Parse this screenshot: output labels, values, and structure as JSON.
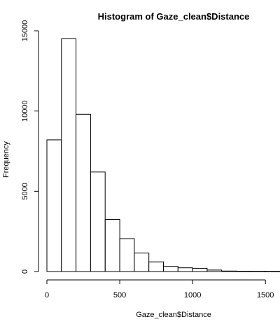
{
  "chart_data": {
    "type": "bar",
    "title": "Histogram of Gaze_clean$Distance",
    "xlabel": "Gaze_clean$Distance",
    "ylabel": "Frequency",
    "bins": [
      {
        "start": 0,
        "end": 100,
        "value": 8200
      },
      {
        "start": 100,
        "end": 200,
        "value": 14500
      },
      {
        "start": 200,
        "end": 300,
        "value": 9800
      },
      {
        "start": 300,
        "end": 400,
        "value": 6200
      },
      {
        "start": 400,
        "end": 500,
        "value": 3250
      },
      {
        "start": 500,
        "end": 600,
        "value": 2050
      },
      {
        "start": 600,
        "end": 700,
        "value": 1150
      },
      {
        "start": 700,
        "end": 800,
        "value": 600
      },
      {
        "start": 800,
        "end": 900,
        "value": 320
      },
      {
        "start": 900,
        "end": 1000,
        "value": 230
      },
      {
        "start": 1000,
        "end": 1100,
        "value": 200
      },
      {
        "start": 1100,
        "end": 1200,
        "value": 90
      },
      {
        "start": 1200,
        "end": 1300,
        "value": 30
      },
      {
        "start": 1300,
        "end": 1400,
        "value": 20
      },
      {
        "start": 1400,
        "end": 1500,
        "value": 15
      },
      {
        "start": 1500,
        "end": 1600,
        "value": 10
      }
    ],
    "xlim": [
      0,
      1600
    ],
    "ylim": [
      0,
      15000
    ],
    "xticks": [
      0,
      500,
      1000,
      1500
    ],
    "yticks": [
      0,
      5000,
      10000,
      15000
    ],
    "xtick_labels": [
      "0",
      "500",
      "1000",
      "1500"
    ],
    "ytick_labels": [
      "0",
      "5000",
      "10000",
      "15000"
    ],
    "grid": false,
    "bar_fill": "#ffffff",
    "bar_stroke": "#000000"
  }
}
